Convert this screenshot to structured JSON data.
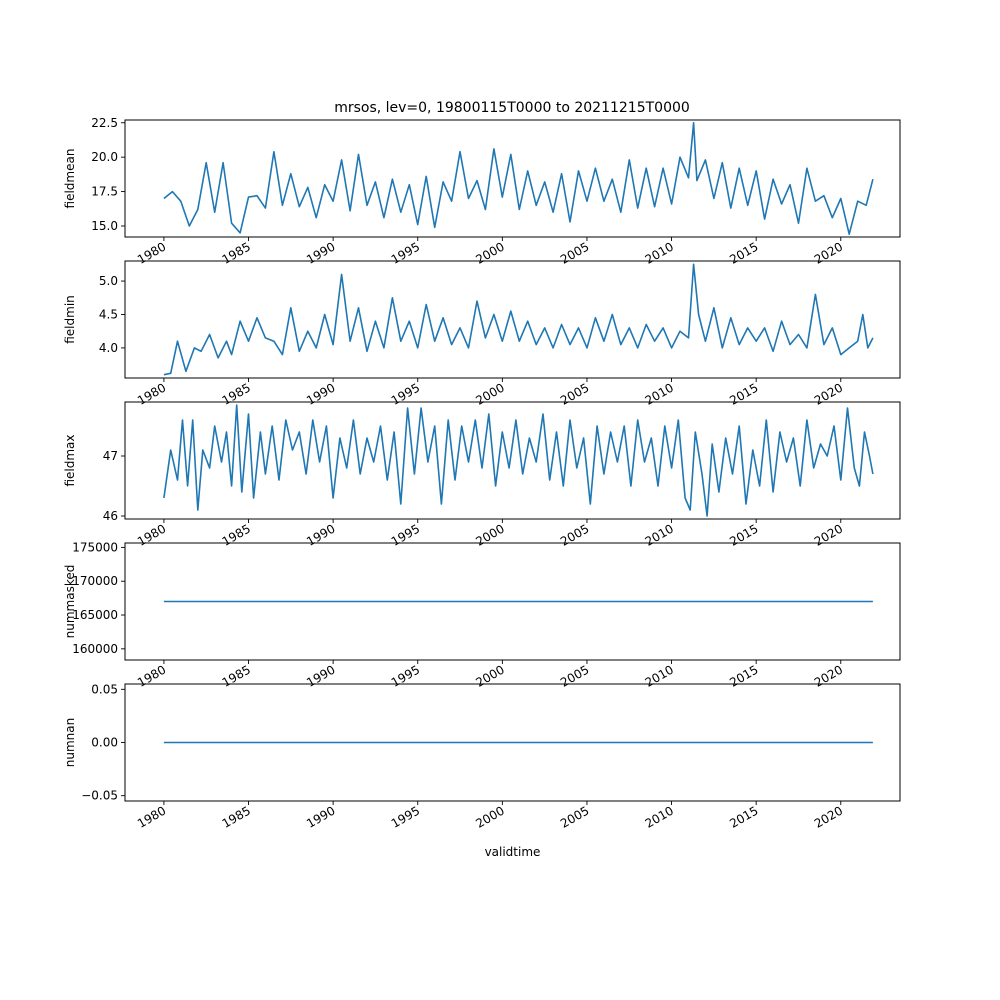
{
  "title": "mrsos, lev=0, 19800115T0000 to 20211215T0000",
  "colors": {
    "series": "#1f77b4"
  },
  "chart_data": [
    {
      "type": "line",
      "ylabel": "fieldmean",
      "xlim": [
        1977.7,
        2023.5
      ],
      "ylim": [
        14.2,
        22.7
      ],
      "yticks": [
        15.0,
        17.5,
        20.0,
        22.5
      ],
      "ytick_labels": [
        "15.0",
        "17.5",
        "20.0",
        "22.5"
      ],
      "x": [
        1980.0,
        1980.5,
        1981.0,
        1981.5,
        1982.0,
        1982.5,
        1983.0,
        1983.5,
        1984.0,
        1984.5,
        1985.0,
        1985.5,
        1986.0,
        1986.5,
        1987.0,
        1987.5,
        1988.0,
        1988.5,
        1989.0,
        1989.5,
        1990.0,
        1990.5,
        1991.0,
        1991.5,
        1992.0,
        1992.5,
        1993.0,
        1993.5,
        1994.0,
        1994.5,
        1995.0,
        1995.5,
        1996.0,
        1996.5,
        1997.0,
        1997.5,
        1998.0,
        1998.5,
        1999.0,
        1999.5,
        2000.0,
        2000.5,
        2001.0,
        2001.5,
        2002.0,
        2002.5,
        2003.0,
        2003.5,
        2004.0,
        2004.5,
        2005.0,
        2005.5,
        2006.0,
        2006.5,
        2007.0,
        2007.5,
        2008.0,
        2008.5,
        2009.0,
        2009.5,
        2010.0,
        2010.5,
        2011.0,
        2011.3,
        2011.5,
        2012.0,
        2012.5,
        2013.0,
        2013.5,
        2014.0,
        2014.5,
        2015.0,
        2015.5,
        2016.0,
        2016.5,
        2017.0,
        2017.5,
        2018.0,
        2018.5,
        2019.0,
        2019.5,
        2020.0,
        2020.5,
        2021.0,
        2021.5,
        2021.9
      ],
      "values": [
        17.0,
        17.5,
        16.8,
        15.0,
        16.2,
        19.6,
        16.0,
        19.6,
        15.2,
        14.5,
        17.1,
        17.2,
        16.3,
        20.4,
        16.5,
        18.8,
        16.4,
        17.8,
        15.6,
        18.0,
        16.8,
        19.8,
        16.1,
        20.2,
        16.5,
        18.2,
        15.6,
        18.4,
        16.0,
        18.0,
        15.1,
        18.6,
        14.9,
        18.2,
        16.8,
        20.4,
        17.0,
        18.3,
        16.2,
        20.6,
        17.1,
        20.2,
        16.2,
        19.0,
        16.5,
        18.2,
        16.0,
        18.8,
        15.3,
        19.0,
        16.8,
        19.2,
        16.8,
        18.4,
        16.0,
        19.8,
        16.3,
        19.2,
        16.4,
        19.2,
        16.6,
        20.0,
        18.5,
        22.5,
        18.3,
        19.8,
        17.0,
        19.6,
        16.3,
        19.2,
        16.5,
        19.0,
        15.5,
        18.4,
        16.6,
        18.0,
        15.2,
        19.2,
        16.8,
        17.2,
        15.6,
        17.0,
        14.4,
        16.8,
        16.5,
        18.4
      ]
    },
    {
      "type": "line",
      "ylabel": "fieldmin",
      "xlim": [
        1977.7,
        2023.5
      ],
      "ylim": [
        3.55,
        5.3
      ],
      "yticks": [
        4.0,
        4.5,
        5.0
      ],
      "ytick_labels": [
        "4.0",
        "4.5",
        "5.0"
      ],
      "x": [
        1980.0,
        1980.4,
        1980.8,
        1981.3,
        1981.8,
        1982.2,
        1982.7,
        1983.2,
        1983.7,
        1984.0,
        1984.5,
        1985.0,
        1985.5,
        1986.0,
        1986.5,
        1987.0,
        1987.5,
        1988.0,
        1988.5,
        1989.0,
        1989.5,
        1990.0,
        1990.5,
        1991.0,
        1991.5,
        1992.0,
        1992.5,
        1993.0,
        1993.5,
        1994.0,
        1994.5,
        1995.0,
        1995.5,
        1996.0,
        1996.5,
        1997.0,
        1997.5,
        1998.0,
        1998.5,
        1999.0,
        1999.5,
        2000.0,
        2000.5,
        2001.0,
        2001.5,
        2002.0,
        2002.5,
        2003.0,
        2003.5,
        2004.0,
        2004.5,
        2005.0,
        2005.5,
        2006.0,
        2006.5,
        2007.0,
        2007.5,
        2008.0,
        2008.5,
        2009.0,
        2009.5,
        2010.0,
        2010.5,
        2011.0,
        2011.3,
        2011.6,
        2012.0,
        2012.5,
        2013.0,
        2013.5,
        2014.0,
        2014.5,
        2015.0,
        2015.5,
        2016.0,
        2016.5,
        2017.0,
        2017.5,
        2018.0,
        2018.5,
        2019.0,
        2019.5,
        2020.0,
        2020.5,
        2021.0,
        2021.3,
        2021.6,
        2021.9
      ],
      "values": [
        3.6,
        3.62,
        4.1,
        3.65,
        4.0,
        3.95,
        4.2,
        3.85,
        4.1,
        3.9,
        4.4,
        4.1,
        4.45,
        4.15,
        4.1,
        3.9,
        4.6,
        3.95,
        4.25,
        4.0,
        4.5,
        4.05,
        5.1,
        4.1,
        4.6,
        3.95,
        4.4,
        4.0,
        4.75,
        4.1,
        4.4,
        4.0,
        4.65,
        4.1,
        4.45,
        4.05,
        4.3,
        4.0,
        4.7,
        4.15,
        4.5,
        4.1,
        4.55,
        4.1,
        4.4,
        4.05,
        4.3,
        4.0,
        4.35,
        4.05,
        4.3,
        4.0,
        4.45,
        4.1,
        4.5,
        4.05,
        4.3,
        4.0,
        4.35,
        4.1,
        4.3,
        4.0,
        4.25,
        4.15,
        5.25,
        4.5,
        4.1,
        4.6,
        4.0,
        4.45,
        4.05,
        4.3,
        4.1,
        4.3,
        3.95,
        4.4,
        4.05,
        4.2,
        4.0,
        4.8,
        4.05,
        4.3,
        3.9,
        4.0,
        4.1,
        4.5,
        4.0,
        4.15
      ]
    },
    {
      "type": "line",
      "ylabel": "fieldmax",
      "xlim": [
        1977.7,
        2023.5
      ],
      "ylim": [
        45.95,
        47.9
      ],
      "yticks": [
        46.0,
        47.0
      ],
      "ytick_labels": [
        "46",
        "47"
      ],
      "x": [
        1980.0,
        1980.4,
        1980.8,
        1981.1,
        1981.4,
        1981.7,
        1982.0,
        1982.3,
        1982.7,
        1983.0,
        1983.4,
        1983.7,
        1984.0,
        1984.3,
        1984.6,
        1985.0,
        1985.3,
        1985.7,
        1986.0,
        1986.4,
        1986.8,
        1987.2,
        1987.6,
        1988.0,
        1988.4,
        1988.8,
        1989.2,
        1989.6,
        1990.0,
        1990.4,
        1990.8,
        1991.2,
        1991.6,
        1992.0,
        1992.4,
        1992.8,
        1993.2,
        1993.6,
        1994.0,
        1994.4,
        1994.8,
        1995.2,
        1995.6,
        1996.0,
        1996.4,
        1996.8,
        1997.2,
        1997.6,
        1998.0,
        1998.4,
        1998.8,
        1999.2,
        1999.6,
        2000.0,
        2000.4,
        2000.8,
        2001.2,
        2001.6,
        2002.0,
        2002.4,
        2002.8,
        2003.2,
        2003.6,
        2004.0,
        2004.4,
        2004.8,
        2005.2,
        2005.6,
        2006.0,
        2006.4,
        2006.8,
        2007.2,
        2007.6,
        2008.0,
        2008.4,
        2008.8,
        2009.2,
        2009.6,
        2010.0,
        2010.4,
        2010.8,
        2011.1,
        2011.4,
        2011.8,
        2012.1,
        2012.4,
        2012.8,
        2013.2,
        2013.6,
        2014.0,
        2014.4,
        2014.8,
        2015.2,
        2015.6,
        2016.0,
        2016.4,
        2016.8,
        2017.2,
        2017.6,
        2018.0,
        2018.4,
        2018.8,
        2019.2,
        2019.6,
        2020.0,
        2020.4,
        2020.8,
        2021.1,
        2021.4,
        2021.7,
        2021.9
      ],
      "values": [
        46.3,
        47.1,
        46.6,
        47.6,
        46.5,
        47.6,
        46.1,
        47.1,
        46.8,
        47.5,
        46.9,
        47.4,
        46.5,
        47.85,
        46.4,
        47.7,
        46.3,
        47.4,
        46.7,
        47.5,
        46.6,
        47.6,
        47.1,
        47.4,
        46.7,
        47.6,
        46.9,
        47.5,
        46.3,
        47.3,
        46.8,
        47.6,
        46.7,
        47.3,
        46.9,
        47.5,
        46.6,
        47.4,
        46.2,
        47.8,
        46.7,
        47.8,
        46.9,
        47.5,
        46.2,
        47.6,
        46.6,
        47.5,
        46.9,
        47.6,
        46.8,
        47.7,
        46.5,
        47.4,
        46.8,
        47.6,
        46.7,
        47.3,
        46.9,
        47.7,
        46.6,
        47.4,
        46.5,
        47.6,
        46.8,
        47.3,
        46.2,
        47.5,
        46.7,
        47.4,
        46.9,
        47.5,
        46.5,
        47.6,
        46.9,
        47.3,
        46.5,
        47.5,
        46.8,
        47.6,
        46.3,
        46.1,
        47.4,
        46.7,
        46.0,
        47.2,
        46.4,
        47.3,
        46.7,
        47.5,
        46.2,
        47.1,
        46.5,
        47.6,
        46.4,
        47.4,
        46.9,
        47.3,
        46.5,
        47.6,
        46.8,
        47.2,
        47.0,
        47.5,
        46.6,
        47.8,
        46.8,
        46.5,
        47.4,
        47.0,
        46.7
      ]
    },
    {
      "type": "line",
      "ylabel": "nummasked",
      "xlim": [
        1977.7,
        2023.5
      ],
      "ylim": [
        158350,
        175650
      ],
      "yticks": [
        160000,
        165000,
        170000,
        175000
      ],
      "ytick_labels": [
        "160000",
        "165000",
        "170000",
        "175000"
      ],
      "x": [
        1980.0,
        2021.9
      ],
      "values": [
        167000,
        167000
      ]
    },
    {
      "type": "line",
      "ylabel": "numnan",
      "xlabel": "validtime",
      "xlim": [
        1977.7,
        2023.5
      ],
      "ylim": [
        -0.055,
        0.055
      ],
      "yticks": [
        -0.05,
        0.0,
        0.05
      ],
      "ytick_labels": [
        "−0.05",
        "0.00",
        "0.05"
      ],
      "x": [
        1980.0,
        2021.9
      ],
      "values": [
        0.0,
        0.0
      ]
    }
  ],
  "xticks": [
    1980,
    1985,
    1990,
    1995,
    2000,
    2005,
    2010,
    2015,
    2020
  ],
  "xtick_labels": [
    "1980",
    "1985",
    "1990",
    "1995",
    "2000",
    "2005",
    "2010",
    "2015",
    "2020"
  ]
}
